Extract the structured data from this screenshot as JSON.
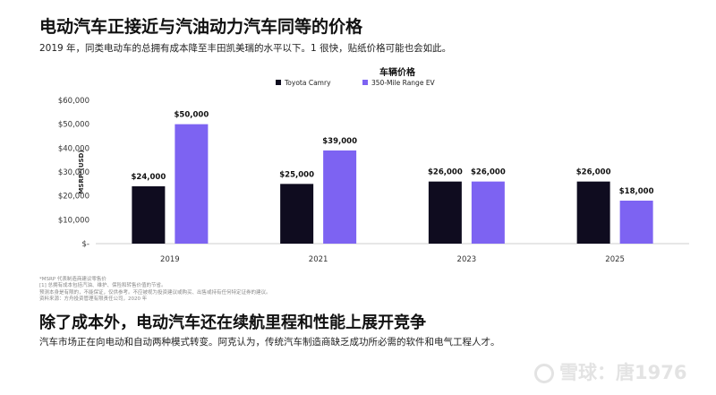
{
  "header": {
    "title": "电动汽车正接近与汽油动力汽车同等的价格",
    "subtitle": "2019 年，同类电动车的总拥有成本降至丰田凯美瑞的水平以下。1 很快，贴纸价格可能也会如此。"
  },
  "chart_data": {
    "type": "bar",
    "title": "车辆价格",
    "ylabel": "MSRP*(USD)",
    "xlabel": "",
    "categories": [
      "2019",
      "2021",
      "2023",
      "2025"
    ],
    "series": [
      {
        "name": "Toyota Camry",
        "color": "#0f0c1f",
        "values": [
          24000,
          25000,
          26000,
          26000
        ],
        "labels": [
          "$24,000",
          "$25,000",
          "$26,000",
          "$26,000"
        ]
      },
      {
        "name": "350-Mile Range EV",
        "color": "#7d63f2",
        "values": [
          50000,
          39000,
          26000,
          18000
        ],
        "labels": [
          "$50,000",
          "$39,000",
          "$26,000",
          "$18,000"
        ]
      }
    ],
    "ylim": [
      0,
      60000
    ],
    "yticks": [
      0,
      10000,
      20000,
      30000,
      40000,
      50000,
      60000
    ],
    "ytick_labels": [
      "$-",
      "$10,000",
      "$20,000",
      "$30,000",
      "$40,000",
      "$50,000",
      "$60,000"
    ],
    "legend_position": "top",
    "grid": false
  },
  "footnotes": [
    "*MSRP 代表制造商建议零售价",
    "[1] 总拥有成本包括汽油、维护、保险和转售价值的节省。",
    "预测本身是有限的，不能保证，仅供参考。不应被视为投资建议或购买、出售或持有任何特定证券的建议。",
    "资料来源：方舟投资管理有限责任公司，2020 年"
  ],
  "section": {
    "title": "除了成本外，电动汽车还在续航里程和性能上展开竞争",
    "body": "汽车市场正在向电动和自动两种模式转变。阿克认为，传统汽车制造商缺乏成功所必需的软件和电气工程人才。"
  },
  "watermark": {
    "text": "雪球：唐1976",
    "icon": "snowball-logo-icon"
  }
}
